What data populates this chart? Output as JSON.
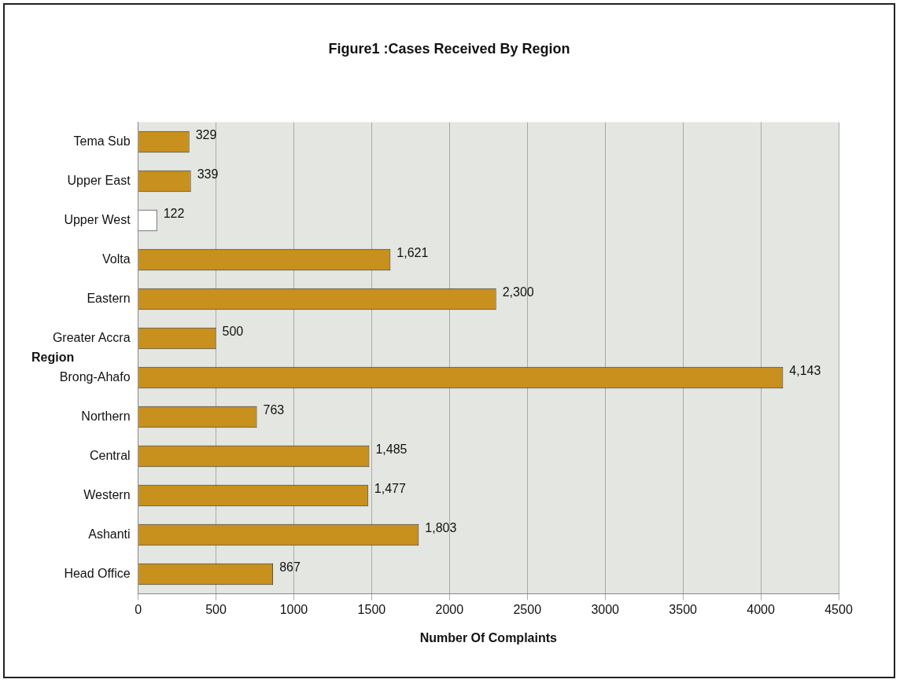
{
  "chart_data": {
    "type": "bar",
    "orientation": "horizontal",
    "title": "Figure1 :Cases Received By Region",
    "xlabel": "Number Of Complaints",
    "ylabel": "Region",
    "categories": [
      "Tema Sub",
      "Upper East",
      "Upper West",
      "Volta",
      "Eastern",
      "Greater Accra",
      "Brong-Ahafo",
      "Northern",
      "Central",
      "Western",
      "Ashanti",
      "Head Office"
    ],
    "values": [
      329,
      339,
      122,
      1621,
      2300,
      500,
      4143,
      763,
      1485,
      1477,
      1803,
      867
    ],
    "value_labels": [
      "329",
      "339",
      "122",
      "1,621",
      "2,300",
      "500",
      "4,143",
      "763",
      "1,485",
      "1,477",
      "1,803",
      "867"
    ],
    "colors": [
      "#c8901c",
      "#c8901c",
      "#ffffff",
      "#c8901c",
      "#c8901c",
      "#c8901c",
      "#c8901c",
      "#c8901c",
      "#c8901c",
      "#c8901c",
      "#c8901c",
      "#c8901c"
    ],
    "xlim": [
      0,
      4500
    ],
    "xticks": [
      0,
      500,
      1000,
      1500,
      2000,
      2500,
      3000,
      3500,
      4000,
      4500
    ],
    "grid": "x",
    "legend": false
  }
}
